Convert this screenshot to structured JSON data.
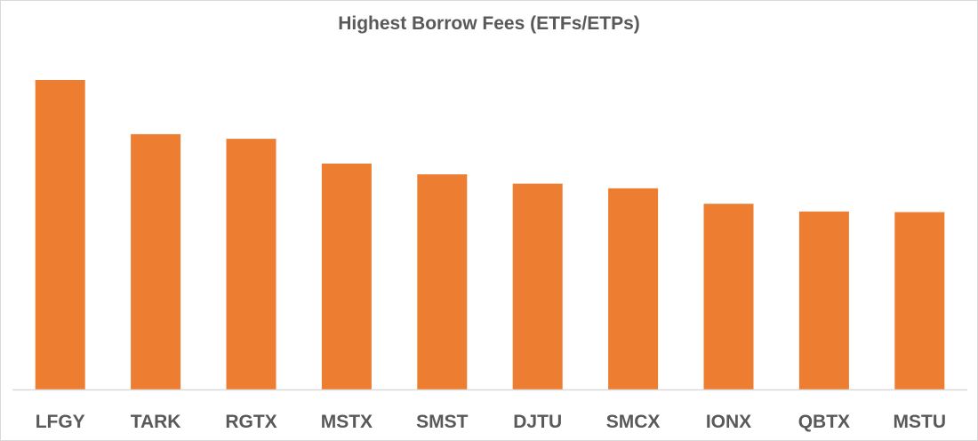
{
  "chart_data": {
    "type": "bar",
    "title": "Highest Borrow Fees (ETFs/ETPs)",
    "xlabel": "",
    "ylabel": "",
    "categories": [
      "LFGY",
      "TARK",
      "RGTX",
      "MSTX",
      "SMST",
      "DJTU",
      "SMCX",
      "IONX",
      "QBTX",
      "MSTU"
    ],
    "values": [
      100,
      82.5,
      81,
      73,
      69.5,
      66.5,
      65,
      60,
      57.5,
      57.3
    ],
    "ylim": [
      0,
      100
    ],
    "grid": false,
    "legend": "none",
    "bar_color": "#ED7D31",
    "axis_color": "#d9d9d9",
    "label_color": "#595959"
  }
}
